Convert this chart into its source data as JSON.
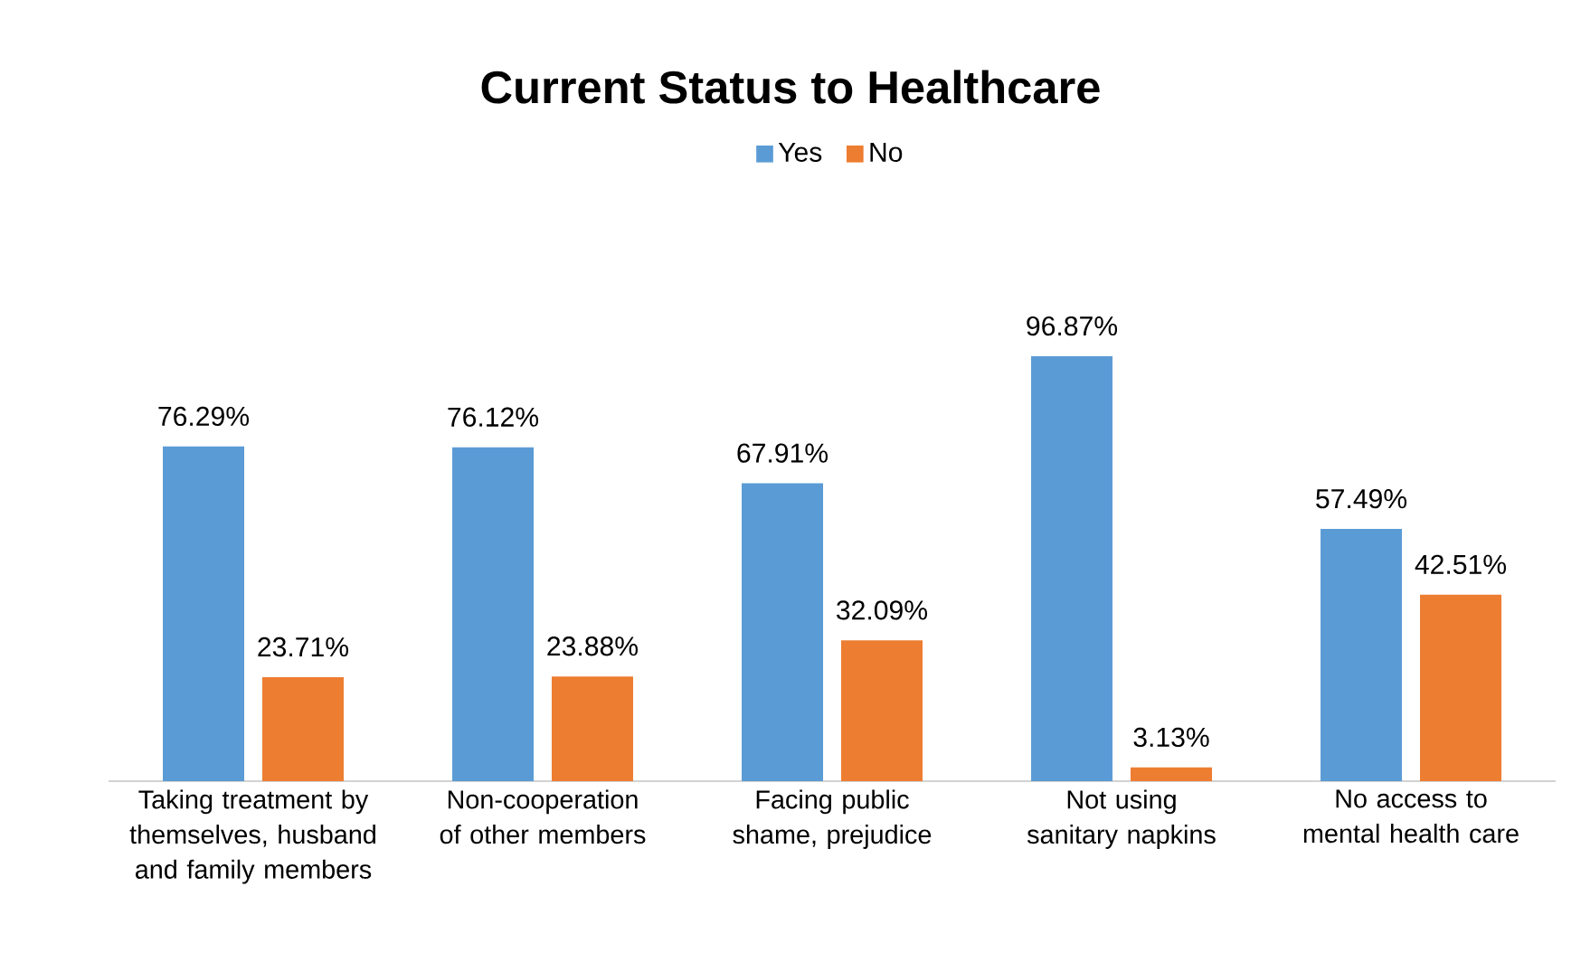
{
  "chart_data": {
    "type": "bar",
    "title": "Current Status to Healthcare",
    "categories": [
      "Taking treatment by themselves, husband and family members",
      "Non-cooperation of other members",
      "Facing public shame, prejudice",
      "Not using sanitary napkins",
      "No access to mental health care"
    ],
    "series": [
      {
        "name": "Yes",
        "color": "#5b9bd5",
        "values": [
          76.29,
          76.12,
          67.91,
          96.87,
          57.49
        ],
        "value_labels": [
          "76.29%",
          "76.12%",
          "67.91%",
          "96.87%",
          "57.49%"
        ]
      },
      {
        "name": "No",
        "color": "#ed7d31",
        "values": [
          23.71,
          23.88,
          32.09,
          3.13,
          42.51
        ],
        "value_labels": [
          "23.71%",
          "23.88%",
          "32.09%",
          "3.13%",
          "42.51%"
        ]
      }
    ],
    "legend": "top"
  }
}
